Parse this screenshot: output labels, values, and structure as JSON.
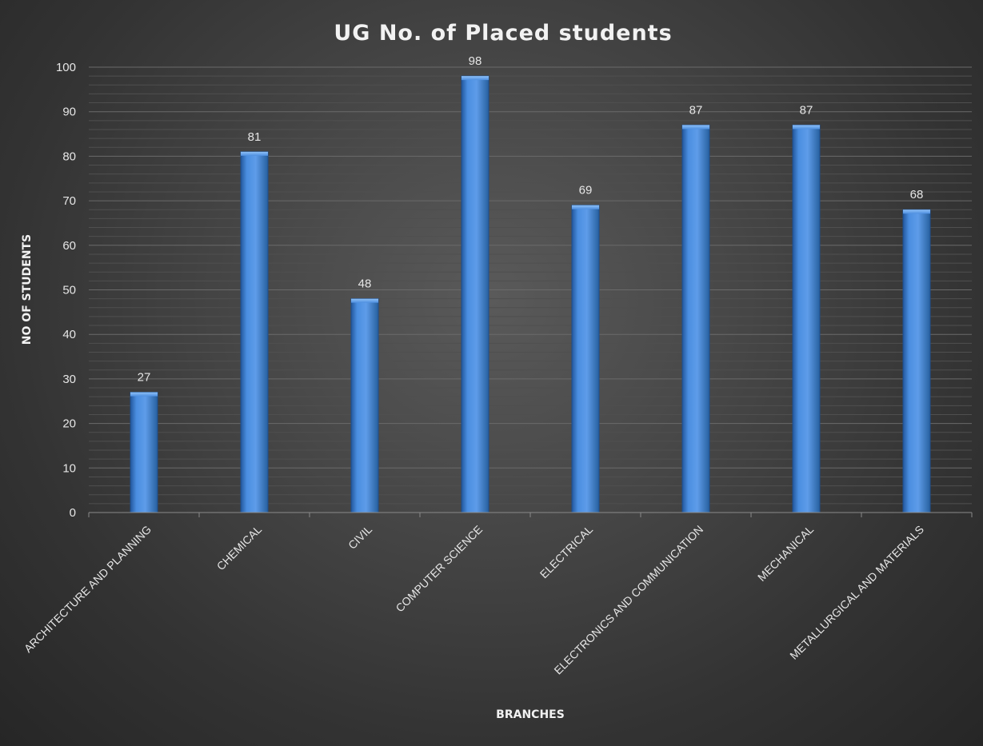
{
  "chart_data": {
    "type": "bar",
    "title": "UG No. of Placed students",
    "xlabel": "BRANCHES",
    "ylabel": "NO OF STUDENTS",
    "categories": [
      "ARCHITECTURE AND PLANNING",
      "CHEMICAL",
      "CIVIL",
      "COMPUTER SCIENCE",
      "ELECTRICAL",
      "ELECTRONICS AND COMMUNICATION",
      "MECHANICAL",
      "METALLURGICAL AND MATERIALS"
    ],
    "values": [
      27,
      81,
      48,
      98,
      69,
      87,
      87,
      68
    ],
    "data_labels": [
      "27",
      "81",
      "48",
      "98",
      "69",
      "87",
      "87",
      "68"
    ],
    "ylim": [
      0,
      100
    ],
    "y_ticks": [
      0,
      10,
      20,
      30,
      40,
      50,
      60,
      70,
      80,
      90,
      100
    ],
    "y_tick_labels": [
      "0",
      "10",
      "20",
      "30",
      "40",
      "50",
      "60",
      "70",
      "80",
      "90",
      "100"
    ],
    "grid": true,
    "legend": "none",
    "colors": {
      "bar": "#3f7fd3",
      "bar_light": "#6aa6ef",
      "bar_dark": "#23579c",
      "gridline": "#5e5e5e",
      "text": "#e6e6e6"
    }
  }
}
